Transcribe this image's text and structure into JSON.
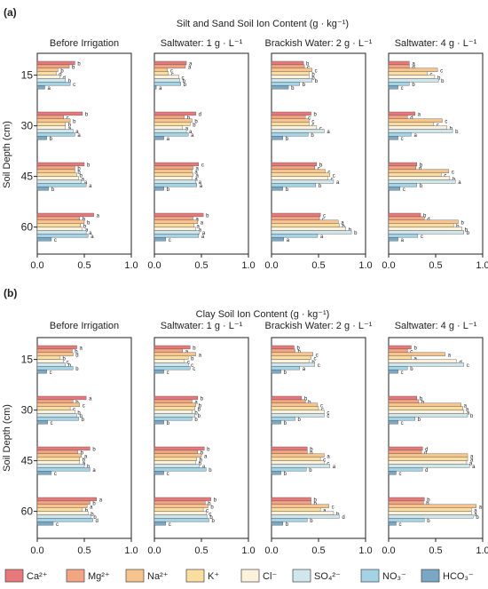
{
  "colors": {
    "Ca": "#e8787a",
    "Mg": "#f3a582",
    "Na": "#f7c48d",
    "K": "#f9dea0",
    "Cl": "#fdf1dc",
    "SO4": "#cfe7ec",
    "NO3": "#a5d3e6",
    "HCO3": "#7aa7c4"
  },
  "legend": [
    {
      "key": "Ca",
      "label": "Ca²⁺"
    },
    {
      "key": "Mg",
      "label": "Mg²⁺"
    },
    {
      "key": "Na",
      "label": "Na²⁺"
    },
    {
      "key": "K",
      "label": "K⁺"
    },
    {
      "key": "Cl",
      "label": "Cl⁻"
    },
    {
      "key": "SO4",
      "label": "SO₄²⁻"
    },
    {
      "key": "NO3",
      "label": "NO₃⁻"
    },
    {
      "key": "HCO3",
      "label": "HCO₃⁻"
    }
  ],
  "chart_data": [
    {
      "type": "bar",
      "orientation": "horizontal",
      "tag": "(a)",
      "title": "Silt and Sand Soil Ion Content (g · kg⁻¹)",
      "ylabel": "Soil Depth (cm)",
      "depths": [
        "15",
        "30",
        "45",
        "60"
      ],
      "xlim": [
        0,
        1.0
      ],
      "xticks": [
        "0.0",
        "0.5",
        "1.0"
      ],
      "ions": [
        "Ca",
        "Mg",
        "Na",
        "K",
        "Cl",
        "SO4",
        "NO3",
        "HCO3"
      ],
      "panels": [
        {
          "title": "Before Irrigation",
          "values": [
            [
              0.4,
              0.34,
              0.22,
              0.2,
              0.24,
              0.3,
              0.35,
              0.08
            ],
            [
              0.48,
              0.28,
              0.35,
              0.3,
              0.3,
              0.38,
              0.4,
              0.1
            ],
            [
              0.5,
              0.4,
              0.4,
              0.42,
              0.44,
              0.47,
              0.52,
              0.12
            ],
            [
              0.6,
              0.45,
              0.5,
              0.46,
              0.48,
              0.52,
              0.54,
              0.15
            ]
          ],
          "letters": [
            [
              "b",
              "b",
              "b",
              "d",
              "d",
              "b",
              "c",
              "a"
            ],
            [
              "b",
              "c",
              "b",
              "b",
              "a",
              "a",
              "a",
              "b"
            ],
            [
              "b",
              "b",
              "b",
              "b",
              "a",
              "a",
              "a",
              "b"
            ],
            [
              "a",
              "b",
              "b",
              "b",
              "a",
              "a",
              "a",
              "c"
            ]
          ]
        },
        {
          "title": "Saltwater: 1 g · L⁻¹",
          "values": [
            [
              0.34,
              0.33,
              0.14,
              0.15,
              0.26,
              0.27,
              0.28,
              0.02
            ],
            [
              0.44,
              0.32,
              0.4,
              0.38,
              0.3,
              0.34,
              0.36,
              0.1
            ],
            [
              0.47,
              0.41,
              0.4,
              0.41,
              0.4,
              0.44,
              0.45,
              0.1
            ],
            [
              0.52,
              0.41,
              0.46,
              0.42,
              0.44,
              0.48,
              0.47,
              0.12
            ]
          ],
          "letters": [
            [
              "a",
              "a",
              "c",
              "c",
              "c",
              "b",
              "b",
              "a"
            ],
            [
              "d",
              "b",
              "b",
              "b",
              "a",
              "a",
              "a",
              "a"
            ],
            [
              "c",
              "a",
              "a",
              "a",
              "a",
              "a",
              "a",
              "b"
            ],
            [
              "b",
              "a",
              "a",
              "a",
              "a",
              "a",
              "a",
              "c"
            ]
          ]
        },
        {
          "title": "Brackish Water: 2 g · L⁻¹",
          "values": [
            [
              0.34,
              0.35,
              0.43,
              0.4,
              0.4,
              0.43,
              0.3,
              0.18
            ],
            [
              0.42,
              0.36,
              0.4,
              0.4,
              0.48,
              0.56,
              0.39,
              0.12
            ],
            [
              0.48,
              0.46,
              0.57,
              0.62,
              0.6,
              0.66,
              0.47,
              0.12
            ],
            [
              0.52,
              0.51,
              0.71,
              0.72,
              0.79,
              0.85,
              0.49,
              0.13
            ]
          ],
          "letters": [
            [
              "b",
              "c",
              "c",
              "b",
              "b",
              "b",
              "b",
              "b"
            ],
            [
              "b",
              "c",
              "c",
              "c",
              "c",
              "a",
              "b",
              "b"
            ],
            [
              "b",
              "c",
              "c",
              "c",
              "c",
              "a",
              "b",
              "b"
            ],
            [
              "c",
              "c",
              "a",
              "b",
              "b",
              "b",
              "a",
              "a"
            ]
          ]
        },
        {
          "title": "Saltwater: 4 g · L⁻¹",
          "values": [
            [
              0.22,
              0.22,
              0.52,
              0.41,
              0.49,
              0.53,
              0.22,
              0.1
            ],
            [
              0.28,
              0.2,
              0.57,
              0.48,
              0.62,
              0.68,
              0.24,
              0.1
            ],
            [
              0.3,
              0.29,
              0.64,
              0.56,
              0.65,
              0.71,
              0.3,
              0.12
            ],
            [
              0.34,
              0.38,
              0.74,
              0.69,
              0.78,
              0.8,
              0.31,
              0.1
            ]
          ],
          "letters": [
            [
              "a",
              "d",
              "c",
              "c",
              "b",
              "b",
              "b",
              "c"
            ],
            [
              "a",
              "d",
              "c",
              "c",
              "b",
              "b",
              "a",
              "c"
            ],
            [
              "b",
              "d",
              "c",
              "c",
              "b",
              "a",
              "b",
              "c"
            ],
            [
              "b",
              "d",
              "b",
              "b",
              "b",
              "b",
              "c",
              "a"
            ]
          ]
        }
      ]
    },
    {
      "type": "bar",
      "orientation": "horizontal",
      "tag": "(b)",
      "title": "Clay Soil Ion Content (g · kg⁻¹)",
      "ylabel": "Soil Depth (cm)",
      "depths": [
        "15",
        "30",
        "45",
        "60"
      ],
      "xlim": [
        0,
        1.0
      ],
      "xticks": [
        "0.0",
        "0.5",
        "1.0"
      ],
      "ions": [
        "Ca",
        "Mg",
        "Na",
        "K",
        "Cl",
        "SO4",
        "NO3",
        "HCO3"
      ],
      "panels": [
        {
          "title": "Before Irrigation",
          "values": [
            [
              0.42,
              0.37,
              0.38,
              0.24,
              0.28,
              0.3,
              0.38,
              0.1
            ],
            [
              0.52,
              0.38,
              0.45,
              0.35,
              0.4,
              0.42,
              0.44,
              0.11
            ],
            [
              0.56,
              0.43,
              0.47,
              0.45,
              0.45,
              0.5,
              0.56,
              0.15
            ],
            [
              0.63,
              0.56,
              0.53,
              0.48,
              0.54,
              0.57,
              0.59,
              0.17
            ]
          ],
          "letters": [
            [
              "a",
              "b",
              "d",
              "b",
              "c",
              "b",
              "b",
              "c"
            ],
            [
              "a",
              "b",
              "c",
              "c",
              "b",
              "b",
              "b",
              "c"
            ],
            [
              "b",
              "b",
              "a",
              "b",
              "a",
              "b",
              "a",
              "c"
            ],
            [
              "a",
              "b",
              "a",
              "b",
              "b",
              "b",
              "d",
              "c"
            ]
          ]
        },
        {
          "title": "Saltwater: 1 g · L⁻¹",
          "values": [
            [
              0.38,
              0.3,
              0.44,
              0.36,
              0.32,
              0.36,
              0.38,
              0.1
            ],
            [
              0.46,
              0.4,
              0.44,
              0.43,
              0.4,
              0.43,
              0.4,
              0.1
            ],
            [
              0.53,
              0.46,
              0.5,
              0.45,
              0.44,
              0.48,
              0.55,
              0.1
            ],
            [
              0.6,
              0.54,
              0.57,
              0.52,
              0.55,
              0.56,
              0.58,
              0.12
            ]
          ],
          "letters": [
            [
              "b",
              "a",
              "a",
              "b",
              "c",
              "c",
              "c",
              "c"
            ],
            [
              "b",
              "a",
              "b",
              "b",
              "b",
              "b",
              "b",
              "b"
            ],
            [
              "b",
              "b",
              "a",
              "b",
              "b",
              "a",
              "b",
              "c"
            ],
            [
              "b",
              "b",
              "b",
              "c",
              "c",
              "b",
              "b",
              "c"
            ]
          ]
        },
        {
          "title": "Brackish Water: 2 g · L⁻¹",
          "values": [
            [
              0.24,
              0.25,
              0.44,
              0.42,
              0.4,
              0.46,
              0.3,
              0.1
            ],
            [
              0.32,
              0.36,
              0.49,
              0.5,
              0.56,
              0.56,
              0.25,
              0.1
            ],
            [
              0.38,
              0.38,
              0.56,
              0.52,
              0.56,
              0.62,
              0.37,
              0.1
            ],
            [
              0.42,
              0.42,
              0.61,
              0.52,
              0.66,
              0.72,
              0.38,
              0.12
            ]
          ],
          "letters": [
            [
              "b",
              "b",
              "c",
              "c",
              "b",
              "c",
              "a",
              "b"
            ],
            [
              "b",
              "b",
              "c",
              "c",
              "c",
              "c",
              "b",
              "b"
            ],
            [
              "b",
              "b",
              "a",
              "c",
              "c",
              "a",
              "b",
              "b"
            ],
            [
              "b",
              "b",
              "c",
              "a",
              "b",
              "d",
              "b",
              "b"
            ]
          ]
        },
        {
          "title": "Saltwater: 4 g · L⁻¹",
          "values": [
            [
              0.24,
              0.2,
              0.6,
              0.24,
              0.72,
              0.8,
              0.2,
              0.1
            ],
            [
              0.3,
              0.32,
              0.77,
              0.79,
              0.8,
              0.84,
              0.28,
              0.1
            ],
            [
              0.36,
              0.35,
              0.84,
              0.84,
              0.83,
              0.86,
              0.36,
              0.08
            ],
            [
              0.38,
              0.37,
              0.93,
              0.88,
              0.88,
              0.9,
              0.38,
              0.08
            ]
          ],
          "letters": [
            [
              "b",
              "c",
              "a",
              "a",
              "d",
              "c",
              "b",
              "c"
            ],
            [
              "b",
              "b",
              "a",
              "a",
              "a",
              "b",
              "b",
              "c"
            ],
            [
              "d",
              "d",
              "a",
              "a",
              "a",
              "a",
              "d",
              "c"
            ],
            [
              "b",
              "b",
              "a",
              "a",
              "a",
              "b",
              "b",
              "c"
            ]
          ]
        }
      ]
    }
  ]
}
